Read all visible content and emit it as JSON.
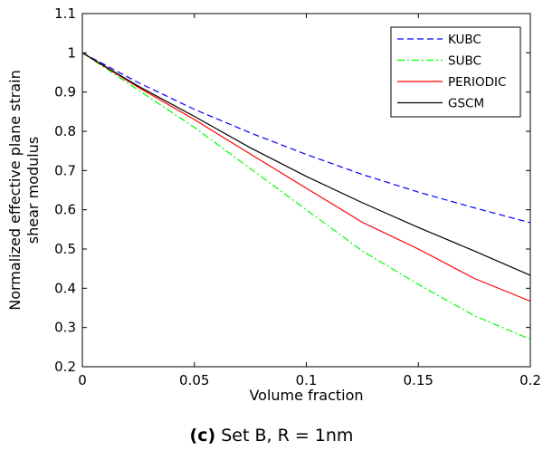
{
  "chart_data": {
    "type": "line",
    "xlabel": "Volume fraction",
    "ylabel_lines": [
      "Normalized effective plane strain",
      "shear modulus"
    ],
    "xlim": [
      0,
      0.2
    ],
    "ylim": [
      0.2,
      1.1
    ],
    "xticks": [
      0,
      0.05,
      0.1,
      0.15,
      0.2
    ],
    "xtick_labels": [
      "0",
      "0.05",
      "0.1",
      "0.15",
      "0.2"
    ],
    "yticks": [
      0.2,
      0.3,
      0.4,
      0.5,
      0.6,
      0.7,
      0.8,
      0.9,
      1,
      1.1
    ],
    "ytick_labels": [
      "0.2",
      "0.3",
      "0.4",
      "0.5",
      "0.6",
      "0.7",
      "0.8",
      "0.9",
      "1",
      "1.1"
    ],
    "grid": false,
    "legend_position": "top-right",
    "series": [
      {
        "name": "KUBC",
        "color": "#0000ff",
        "dash": "dashed",
        "x": [
          0,
          0.025,
          0.05,
          0.075,
          0.1,
          0.125,
          0.15,
          0.175,
          0.2
        ],
        "y": [
          1.0,
          0.924,
          0.856,
          0.796,
          0.741,
          0.69,
          0.645,
          0.605,
          0.567
        ]
      },
      {
        "name": "SUBC",
        "color": "#00ff00",
        "dash": "dashdot",
        "x": [
          0,
          0.025,
          0.05,
          0.075,
          0.1,
          0.125,
          0.15,
          0.175,
          0.2
        ],
        "y": [
          1.0,
          0.905,
          0.81,
          0.705,
          0.6,
          0.495,
          0.41,
          0.33,
          0.27
        ]
      },
      {
        "name": "PERIODIC",
        "color": "#ff0000",
        "dash": "solid",
        "x": [
          0,
          0.025,
          0.05,
          0.075,
          0.1,
          0.125,
          0.15,
          0.175,
          0.2
        ],
        "y": [
          1.0,
          0.912,
          0.83,
          0.742,
          0.655,
          0.568,
          0.5,
          0.425,
          0.367
        ]
      },
      {
        "name": "GSCM",
        "color": "#000000",
        "dash": "solid",
        "x": [
          0,
          0.025,
          0.05,
          0.075,
          0.1,
          0.125,
          0.15,
          0.175,
          0.2
        ],
        "y": [
          1.0,
          0.915,
          0.838,
          0.758,
          0.685,
          0.618,
          0.555,
          0.495,
          0.433
        ]
      }
    ]
  },
  "caption": {
    "tag": "(c)",
    "text": "Set B, R = 1nm"
  }
}
